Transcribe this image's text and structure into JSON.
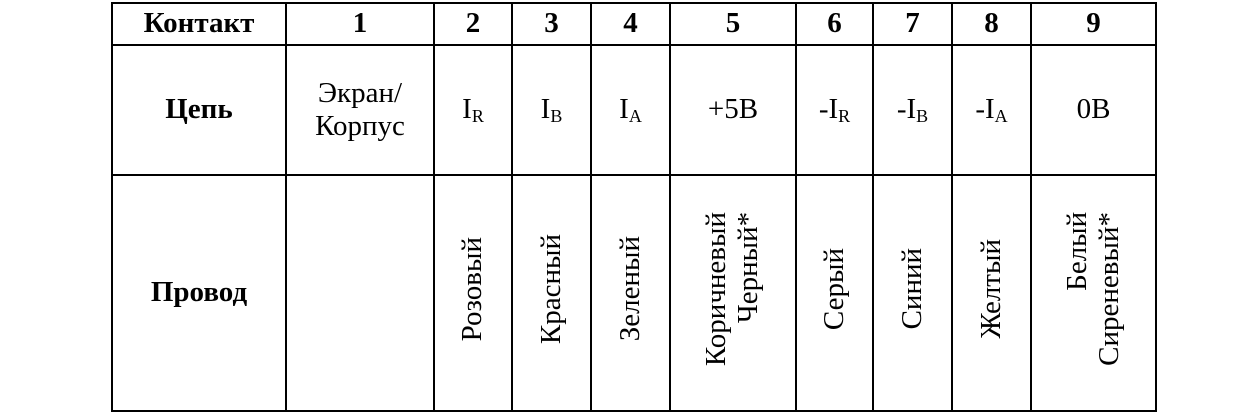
{
  "table": {
    "row_headers": [
      "Контакт",
      "Цепь",
      "Провод"
    ],
    "contacts": [
      "1",
      "2",
      "3",
      "4",
      "5",
      "6",
      "7",
      "8",
      "9"
    ],
    "circuits": [
      {
        "main": "Экран/\nКорпус",
        "sub": ""
      },
      {
        "main": "I",
        "sub": "R"
      },
      {
        "main": "I",
        "sub": "B"
      },
      {
        "main": "I",
        "sub": "A"
      },
      {
        "main": "+5В",
        "sub": ""
      },
      {
        "main": "-I",
        "sub": "R"
      },
      {
        "main": "-I",
        "sub": "B"
      },
      {
        "main": "-I",
        "sub": "A"
      },
      {
        "main": "0В",
        "sub": ""
      }
    ],
    "wires": [
      "",
      "Розовый",
      "Красный",
      "Зеленый",
      "Коричневый\nЧерный*",
      "Серый",
      "Синий",
      "Желтый",
      "Белый\nСиреневый*"
    ]
  }
}
